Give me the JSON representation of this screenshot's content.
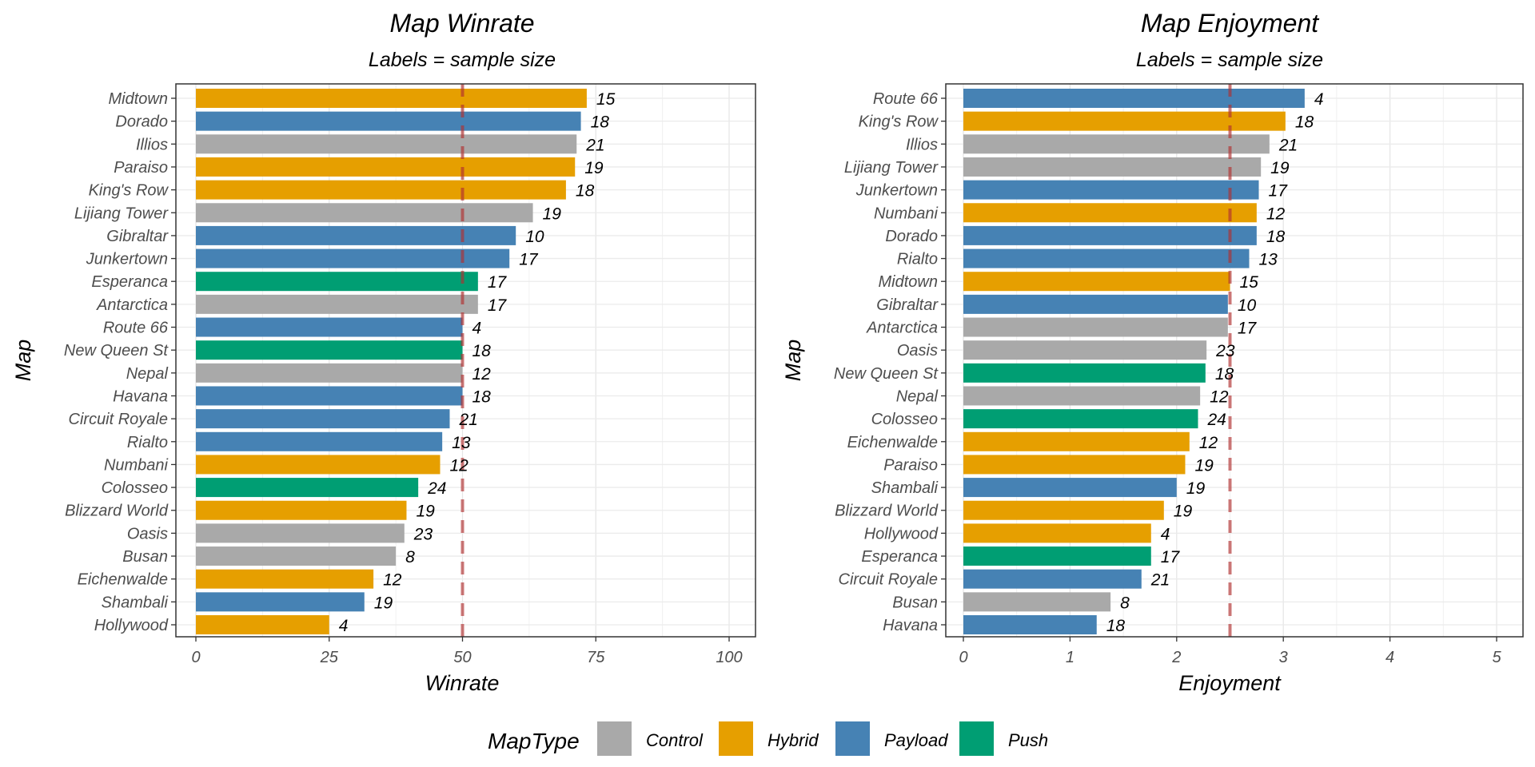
{
  "chart_data": [
    {
      "type": "bar",
      "orientation": "horizontal",
      "title": "Map Winrate",
      "subtitle": "Labels = sample size",
      "xlabel": "Winrate",
      "ylabel": "Map",
      "xlim": [
        0,
        100
      ],
      "xticks": [
        "0",
        "25",
        "50",
        "75",
        "100"
      ],
      "reference_line": 50,
      "grid": true,
      "categories": [
        "Midtown",
        "Dorado",
        "Illios",
        "Paraiso",
        "King's Row",
        "Lijiang Tower",
        "Gibraltar",
        "Junkertown",
        "Esperanca",
        "Antarctica",
        "Route 66",
        "New Queen St",
        "Nepal",
        "Havana",
        "Circuit Royale",
        "Rialto",
        "Numbani",
        "Colosseo",
        "Blizzard World",
        "Oasis",
        "Busan",
        "Eichenwalde",
        "Shambali",
        "Hollywood"
      ],
      "values": [
        73.3,
        72.2,
        71.4,
        71.1,
        69.4,
        63.2,
        60.0,
        58.8,
        52.9,
        52.9,
        50.0,
        50.0,
        50.0,
        50.0,
        47.6,
        46.2,
        45.8,
        41.7,
        39.5,
        39.1,
        37.5,
        33.3,
        31.6,
        25.0
      ],
      "sample_sizes": [
        "15",
        "18",
        "21",
        "19",
        "18",
        "19",
        "10",
        "17",
        "17",
        "17",
        "4",
        "18",
        "12",
        "18",
        "21",
        "13",
        "12",
        "24",
        "19",
        "23",
        "8",
        "12",
        "19",
        "4"
      ],
      "map_types": [
        "Hybrid",
        "Payload",
        "Control",
        "Hybrid",
        "Hybrid",
        "Control",
        "Payload",
        "Payload",
        "Push",
        "Control",
        "Payload",
        "Push",
        "Control",
        "Payload",
        "Payload",
        "Payload",
        "Hybrid",
        "Push",
        "Hybrid",
        "Control",
        "Control",
        "Hybrid",
        "Payload",
        "Hybrid"
      ]
    },
    {
      "type": "bar",
      "orientation": "horizontal",
      "title": "Map Enjoyment",
      "subtitle": "Labels = sample size",
      "xlabel": "Enjoyment",
      "ylabel": "Map",
      "xlim": [
        0,
        5
      ],
      "xticks": [
        "0",
        "1",
        "2",
        "3",
        "4",
        "5"
      ],
      "reference_line": 2.5,
      "grid": true,
      "categories": [
        "Route 66",
        "King's Row",
        "Illios",
        "Lijiang Tower",
        "Junkertown",
        "Numbani",
        "Dorado",
        "Rialto",
        "Midtown",
        "Gibraltar",
        "Antarctica",
        "Oasis",
        "New Queen St",
        "Nepal",
        "Colosseo",
        "Eichenwalde",
        "Paraiso",
        "Shambali",
        "Blizzard World",
        "Hollywood",
        "Esperanca",
        "Circuit Royale",
        "Busan",
        "Havana"
      ],
      "values": [
        3.2,
        3.02,
        2.87,
        2.79,
        2.77,
        2.75,
        2.75,
        2.68,
        2.5,
        2.48,
        2.48,
        2.28,
        2.27,
        2.22,
        2.2,
        2.12,
        2.08,
        2.0,
        1.88,
        1.76,
        1.76,
        1.67,
        1.38,
        1.25
      ],
      "sample_sizes": [
        "4",
        "18",
        "21",
        "19",
        "17",
        "12",
        "18",
        "13",
        "15",
        "10",
        "17",
        "23",
        "18",
        "12",
        "24",
        "12",
        "19",
        "19",
        "19",
        "4",
        "17",
        "21",
        "8",
        "18"
      ],
      "map_types": [
        "Payload",
        "Hybrid",
        "Control",
        "Control",
        "Payload",
        "Hybrid",
        "Payload",
        "Payload",
        "Hybrid",
        "Payload",
        "Control",
        "Control",
        "Push",
        "Control",
        "Push",
        "Hybrid",
        "Hybrid",
        "Payload",
        "Hybrid",
        "Hybrid",
        "Push",
        "Payload",
        "Control",
        "Payload"
      ]
    }
  ],
  "legend": {
    "title": "MapType",
    "position": "bottom",
    "items": [
      {
        "label": "Control",
        "color": "#A9A9A9"
      },
      {
        "label": "Hybrid",
        "color": "#E69F00"
      },
      {
        "label": "Payload",
        "color": "#4682B4"
      },
      {
        "label": "Push",
        "color": "#009E73"
      }
    ]
  }
}
